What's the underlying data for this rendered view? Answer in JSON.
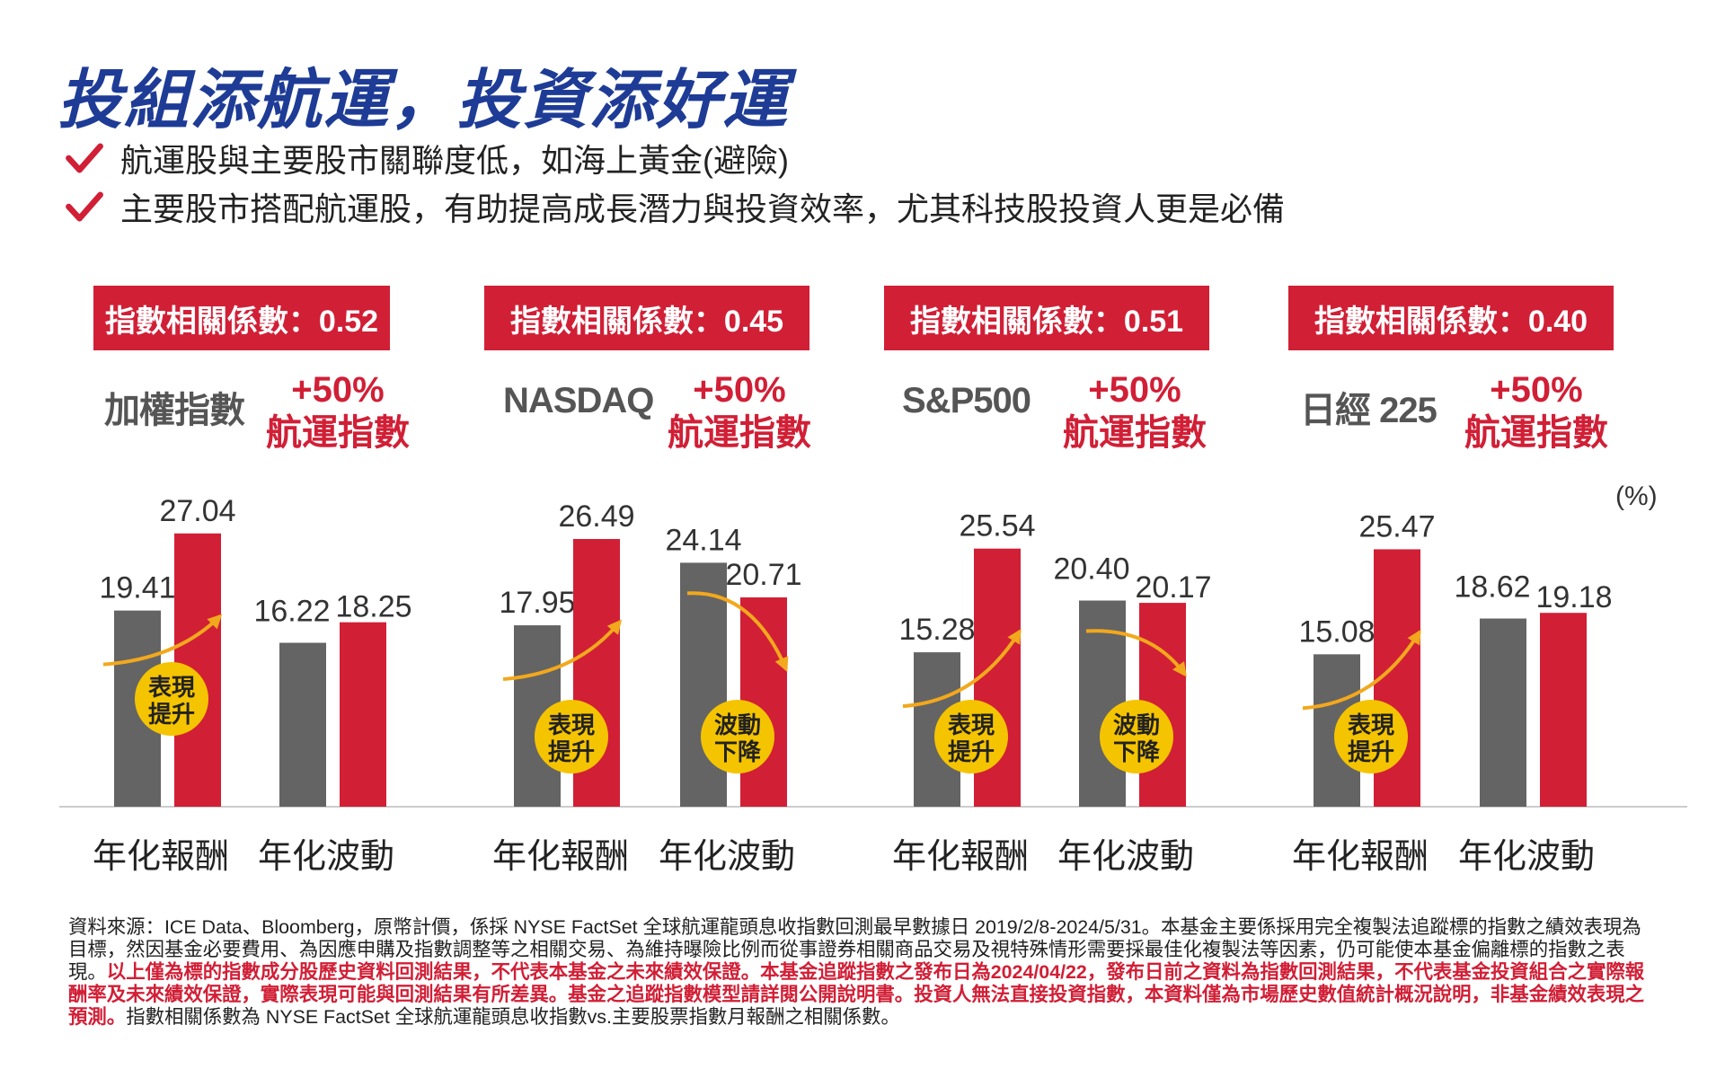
{
  "title": "投組添航運，投資添好運",
  "bullets": [
    "航運股與主要股市關聯度低，如海上黃金(避險)",
    "主要股市搭配航運股，有助提高成長潛力與投資效率，尤其科技股投資人更是必備"
  ],
  "colors": {
    "title": "#1e3c96",
    "accent": "#d11f36",
    "gray_bar": "#646464",
    "arrow": "#f2a81d",
    "badge": "#f5c400"
  },
  "unit_label": "(%)",
  "chart_data": {
    "type": "bar",
    "unit": "(%)",
    "grid": false,
    "panels": [
      {
        "corr_label": "指數相關係數：0.52",
        "index_name": "加權指數",
        "combo_line1": "+50%",
        "combo_line2": "航運指數",
        "categories": [
          "年化報酬",
          "年化波動"
        ],
        "series": [
          {
            "name": "加權指數",
            "values": [
              19.41,
              16.22
            ]
          },
          {
            "name": "+50% 航運指數",
            "values": [
              27.04,
              18.25
            ]
          }
        ],
        "value_labels": [
          [
            "19.41",
            "16.22"
          ],
          [
            "27.04",
            "18.25"
          ]
        ],
        "badges": [
          "表現\n提升",
          ""
        ]
      },
      {
        "corr_label": "指數相關係數：0.45",
        "index_name": "NASDAQ",
        "combo_line1": "+50%",
        "combo_line2": "航運指數",
        "categories": [
          "年化報酬",
          "年化波動"
        ],
        "series": [
          {
            "name": "NASDAQ",
            "values": [
              17.95,
              24.14
            ]
          },
          {
            "name": "+50% 航運指數",
            "values": [
              26.49,
              20.71
            ]
          }
        ],
        "value_labels": [
          [
            "17.95",
            "24.14"
          ],
          [
            "26.49",
            "20.71"
          ]
        ],
        "badges": [
          "表現\n提升",
          "波動\n下降"
        ]
      },
      {
        "corr_label": "指數相關係數：0.51",
        "index_name": "S&P500",
        "combo_line1": "+50%",
        "combo_line2": "航運指數",
        "categories": [
          "年化報酬",
          "年化波動"
        ],
        "series": [
          {
            "name": "S&P500",
            "values": [
              15.28,
              20.4
            ]
          },
          {
            "name": "+50% 航運指數",
            "values": [
              25.54,
              20.17
            ]
          }
        ],
        "value_labels": [
          [
            "15.28",
            "20.40"
          ],
          [
            "25.54",
            "20.17"
          ]
        ],
        "badges": [
          "表現\n提升",
          "波動\n下降"
        ]
      },
      {
        "corr_label": "指數相關係數：0.40",
        "index_name": "日經 225",
        "combo_line1": "+50%",
        "combo_line2": "航運指數",
        "categories": [
          "年化報酬",
          "年化波動"
        ],
        "series": [
          {
            "name": "日經 225",
            "values": [
              15.08,
              18.62
            ]
          },
          {
            "name": "+50% 航運指數",
            "values": [
              25.47,
              19.18
            ]
          }
        ],
        "value_labels": [
          [
            "15.08",
            "18.62"
          ],
          [
            "25.47",
            "19.18"
          ]
        ],
        "badges": [
          "表現\n提升",
          ""
        ]
      }
    ]
  },
  "footnote": {
    "part1": "資料來源：ICE Data、Bloomberg，原幣計價，係採 NYSE FactSet 全球航運龍頭息收指數回測最早數據日 2019/2/8-2024/5/31。本基金主要係採用完全複製法追蹤標的指數之績效表現為目標，然因基金必要費用、為因應申購及指數調整等之相關交易、為維持曝險比例而從事證券相關商品交易及視特殊情形需要採最佳化複製法等因素，仍可能使本基金偏離標的指數之表現。",
    "part2_red": "以上僅為標的指數成分股歷史資料回測結果，不代表本基金之未來績效保證。本基金追蹤指數之發布日為2024/04/22，發布日前之資料為指數回測結果，不代表基金投資組合之實際報酬率及未來績效保證，實際表現可能與回測結果有所差異。基金之追蹤指數模型請詳閱公開說明書。投資人無法直接投資指數，本資料僅為市場歷史數值統計概況說明，非基金績效表現之預測。",
    "part3": "指數相關係數為 NYSE FactSet 全球航運龍頭息收指數vs.主要股票指數月報酬之相關係數。"
  }
}
